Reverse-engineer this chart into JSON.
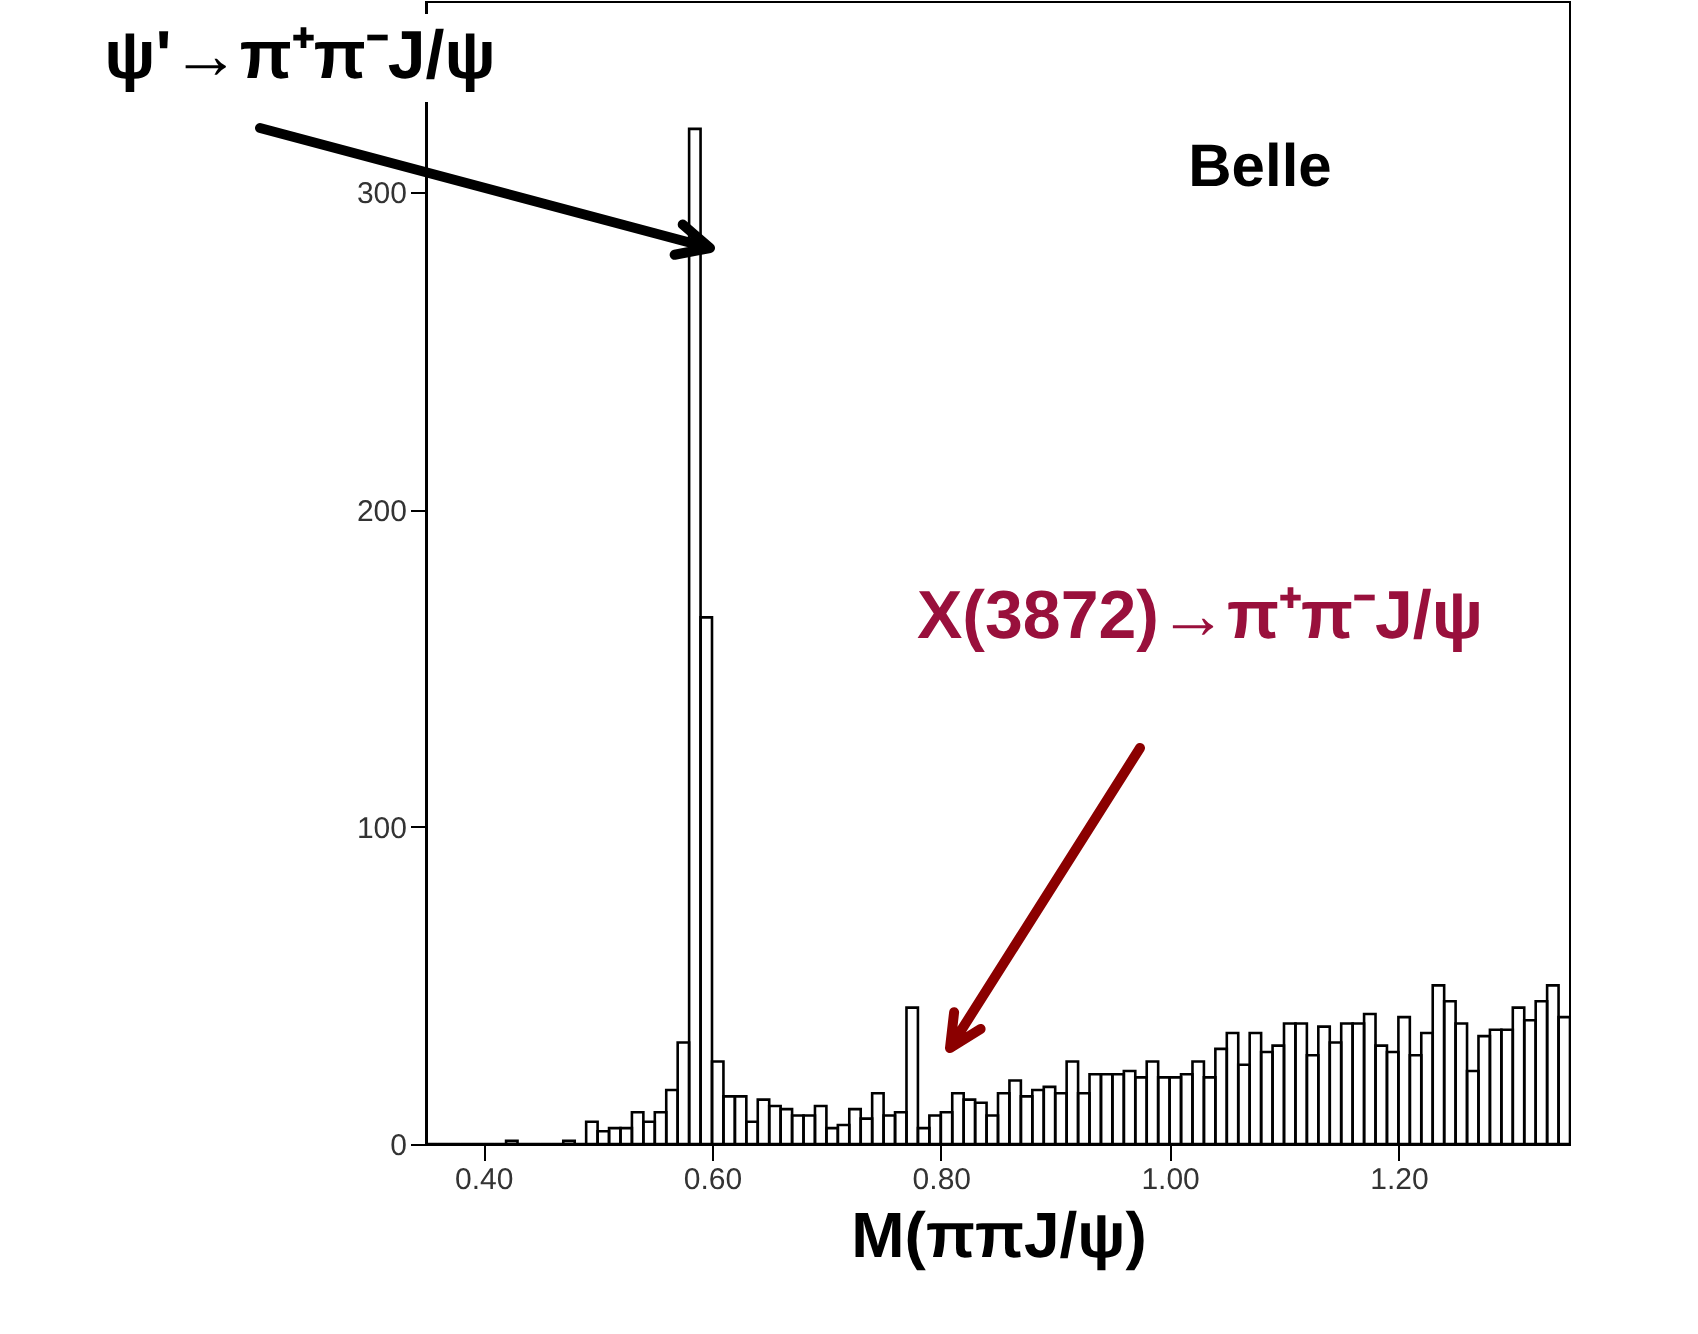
{
  "chart_data": {
    "type": "histogram",
    "bins": [
      0.35,
      0.36,
      0.37,
      0.38,
      0.39,
      0.4,
      0.41,
      0.42,
      0.43,
      0.44,
      0.45,
      0.46,
      0.47,
      0.48,
      0.49,
      0.5,
      0.51,
      0.52,
      0.53,
      0.54,
      0.55,
      0.56,
      0.57,
      0.58,
      0.59,
      0.6,
      0.61,
      0.62,
      0.63,
      0.64,
      0.65,
      0.66,
      0.67,
      0.68,
      0.69,
      0.7,
      0.71,
      0.72,
      0.73,
      0.74,
      0.75,
      0.76,
      0.77,
      0.78,
      0.79,
      0.8,
      0.81,
      0.82,
      0.83,
      0.84,
      0.85,
      0.86,
      0.87,
      0.88,
      0.89,
      0.9,
      0.91,
      0.92,
      0.93,
      0.94,
      0.95,
      0.96,
      0.97,
      0.98,
      0.99,
      1.0,
      1.01,
      1.02,
      1.03,
      1.04,
      1.05,
      1.06,
      1.07,
      1.08,
      1.09,
      1.1,
      1.11,
      1.12,
      1.13,
      1.14,
      1.15,
      1.16,
      1.17,
      1.18,
      1.19,
      1.2,
      1.21,
      1.22,
      1.23,
      1.24,
      1.25,
      1.26,
      1.27,
      1.28,
      1.29,
      1.3,
      1.31,
      1.32,
      1.33,
      1.34,
      1.35
    ],
    "values": [
      0,
      0,
      0,
      0,
      0,
      0,
      0,
      1,
      0,
      0,
      0,
      0,
      1,
      0,
      7,
      4,
      5,
      5,
      10,
      7,
      10,
      17,
      32,
      320,
      166,
      26,
      15,
      15,
      7,
      14,
      12,
      11,
      9,
      9,
      12,
      5,
      6,
      11,
      8,
      16,
      9,
      10,
      43,
      5,
      9,
      10,
      16,
      14,
      13,
      9,
      16,
      20,
      15,
      17,
      18,
      16,
      26,
      16,
      22,
      22,
      22,
      23,
      21,
      26,
      21,
      21,
      22,
      26,
      21,
      30,
      35,
      25,
      35,
      29,
      31,
      38,
      38,
      28,
      37,
      32,
      38,
      38,
      41,
      31,
      29,
      40,
      28,
      35,
      50,
      45,
      38,
      23,
      34,
      36,
      36,
      43,
      39,
      45,
      50,
      40
    ],
    "color": "#000000",
    "xlabel": "M(ππJ/ψ)",
    "xlim": [
      0.35,
      1.35
    ],
    "xticks": [
      {
        "value": 0.4,
        "label": "0.40"
      },
      {
        "value": 0.6,
        "label": "0.60"
      },
      {
        "value": 0.8,
        "label": "0.80"
      },
      {
        "value": 1.0,
        "label": "1.00"
      },
      {
        "value": 1.2,
        "label": "1.20"
      }
    ],
    "ylim": [
      0,
      360
    ],
    "yticks": [
      0,
      100,
      200,
      300
    ],
    "grid": false,
    "annotations": [
      "ψ'→π⁺π⁻J/ψ",
      "X(3872)→π⁺π⁻J/ψ",
      "Belle"
    ]
  }
}
